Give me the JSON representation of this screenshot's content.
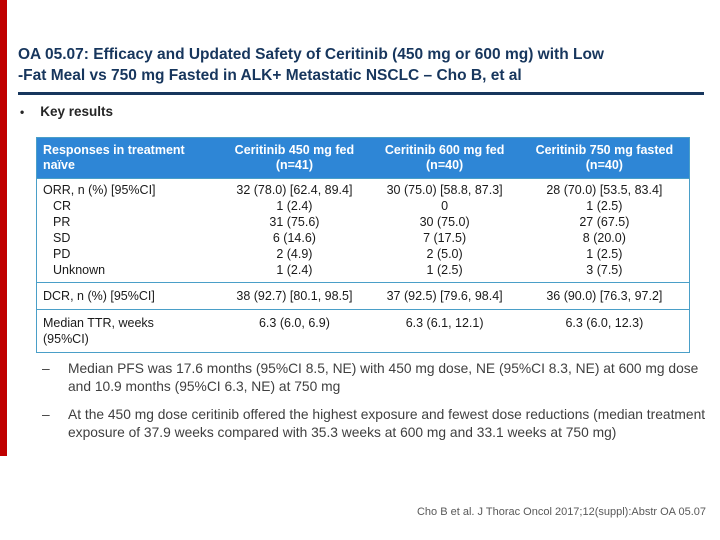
{
  "slide": {
    "title_line1": "OA 05.07: Efficacy and Updated Safety of Ceritinib (450 mg or 600 mg) with Low",
    "title_line2": "-Fat Meal vs 750 mg Fasted in ALK+ Metastatic NSCLC – Cho B, et al",
    "key_results_label": "Key results"
  },
  "colors": {
    "accent_red": "#c00000",
    "title_navy": "#17365d",
    "table_header_blue": "#2e86d6",
    "table_border_blue": "#4a9fc8"
  },
  "table": {
    "columns": [
      {
        "title": "Responses in treatment naïve"
      },
      {
        "title": "Ceritinib 450 mg fed",
        "sub": "(n=41)"
      },
      {
        "title": "Ceritinib 600 mg fed",
        "sub": "(n=40)"
      },
      {
        "title": "Ceritinib 750 mg fasted",
        "sub": "(n=40)"
      }
    ],
    "groups": [
      {
        "rows": [
          {
            "label": "ORR, n (%) [95%CI]",
            "values": [
              "32 (78.0) [62.4, 89.4]",
              "30 (75.0) [58.8, 87.3]",
              "28 (70.0) [53.5, 83.4]"
            ]
          },
          {
            "label": "CR",
            "values": [
              "1 (2.4)",
              "0",
              "1 (2.5)"
            ]
          },
          {
            "label": "PR",
            "values": [
              "31 (75.6)",
              "30 (75.0)",
              "27 (67.5)"
            ]
          },
          {
            "label": "SD",
            "values": [
              "6 (14.6)",
              "7 (17.5)",
              "8 (20.0)"
            ]
          },
          {
            "label": "PD",
            "values": [
              "2 (4.9)",
              "2 (5.0)",
              "1 (2.5)"
            ]
          },
          {
            "label": "Unknown",
            "values": [
              "1 (2.4)",
              "1 (2.5)",
              "3 (7.5)"
            ]
          }
        ]
      },
      {
        "rows": [
          {
            "label": "DCR, n (%) [95%CI]",
            "values": [
              "38 (92.7) [80.1, 98.5]",
              "37 (92.5) [79.6, 98.4]",
              "36 (90.0) [76.3, 97.2]"
            ]
          }
        ]
      },
      {
        "rows": [
          {
            "label": "Median TTR, weeks",
            "label2": "(95%CI)",
            "values": [
              "6.3 (6.0, 6.9)",
              "6.3 (6.1, 12.1)",
              "6.3 (6.0, 12.3)"
            ]
          }
        ]
      }
    ]
  },
  "bullets": {
    "dash": "–",
    "items": [
      "Median PFS was 17.6 months (95%CI 8.5, NE) with 450 mg dose, NE (95%CI 8.3, NE) at 600 mg dose and 10.9 months (95%CI 6.3, NE) at 750 mg",
      "At the 450 mg dose ceritinib offered the highest exposure and fewest dose reductions (median treatment exposure of 37.9 weeks compared with 35.3 weeks at 600 mg and 33.1 weeks at 750 mg)"
    ]
  },
  "footer": {
    "citation": "Cho B et al. J Thorac Oncol 2017;12(suppl):Abstr OA 05.07"
  }
}
